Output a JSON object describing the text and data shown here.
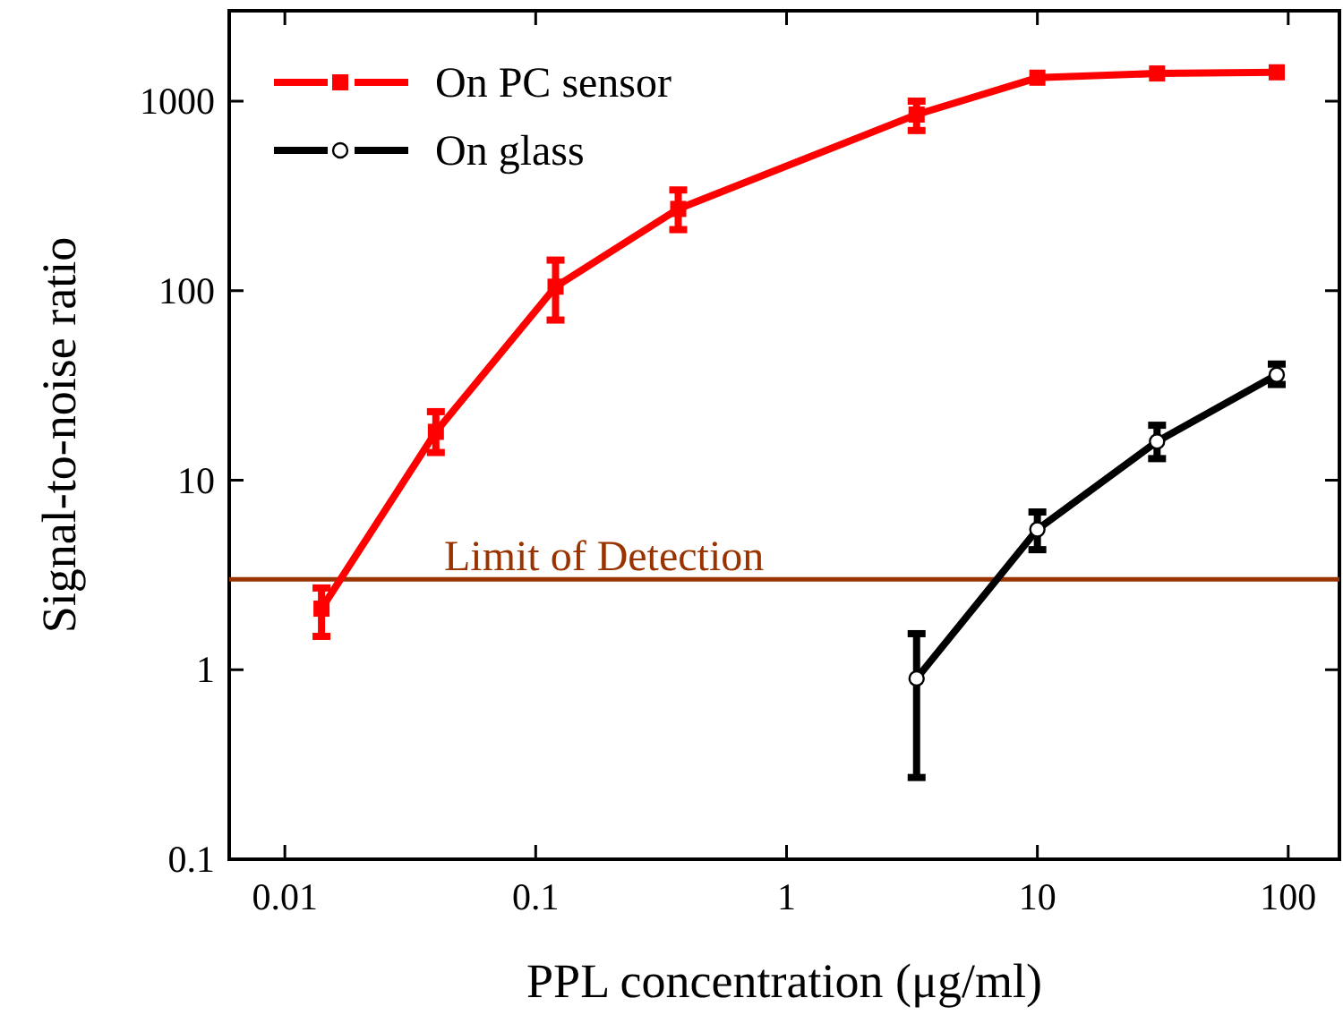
{
  "chart_data": {
    "type": "line",
    "xlabel": "PPL concentration (μg/ml)",
    "ylabel": "Signal-to-noise ratio",
    "log": "xy",
    "xlim": [
      0.006,
      160
    ],
    "ylim": [
      0.1,
      3000
    ],
    "xticks": [
      0.01,
      0.1,
      1,
      10,
      100
    ],
    "yticks": [
      0.1,
      1,
      10,
      100,
      1000
    ],
    "legend": "top left",
    "series": [
      {
        "name": "On PC sensor",
        "color": "#ff0000",
        "marker": "square",
        "x": [
          0.014,
          0.04,
          0.12,
          0.37,
          3.3,
          10,
          30,
          90
        ],
        "values": [
          2.1,
          18,
          105,
          270,
          850,
          1330,
          1400,
          1420
        ],
        "errors": [
          [
            1.5,
            2.7
          ],
          [
            14,
            23
          ],
          [
            70,
            145
          ],
          [
            210,
            340
          ],
          [
            700,
            1000
          ],
          null,
          null,
          null
        ]
      },
      {
        "name": "On glass",
        "color": "#000000",
        "marker": "circle",
        "x": [
          3.3,
          10,
          30,
          90
        ],
        "values": [
          0.9,
          5.5,
          16,
          36
        ],
        "errors": [
          [
            0.27,
            1.55
          ],
          [
            4.3,
            6.8
          ],
          [
            13,
            19.5
          ],
          [
            32,
            41
          ]
        ]
      }
    ],
    "ref_lines": [
      {
        "axis": "y",
        "value": 3,
        "label": "Limit of Detection",
        "color": "#993300"
      }
    ]
  }
}
